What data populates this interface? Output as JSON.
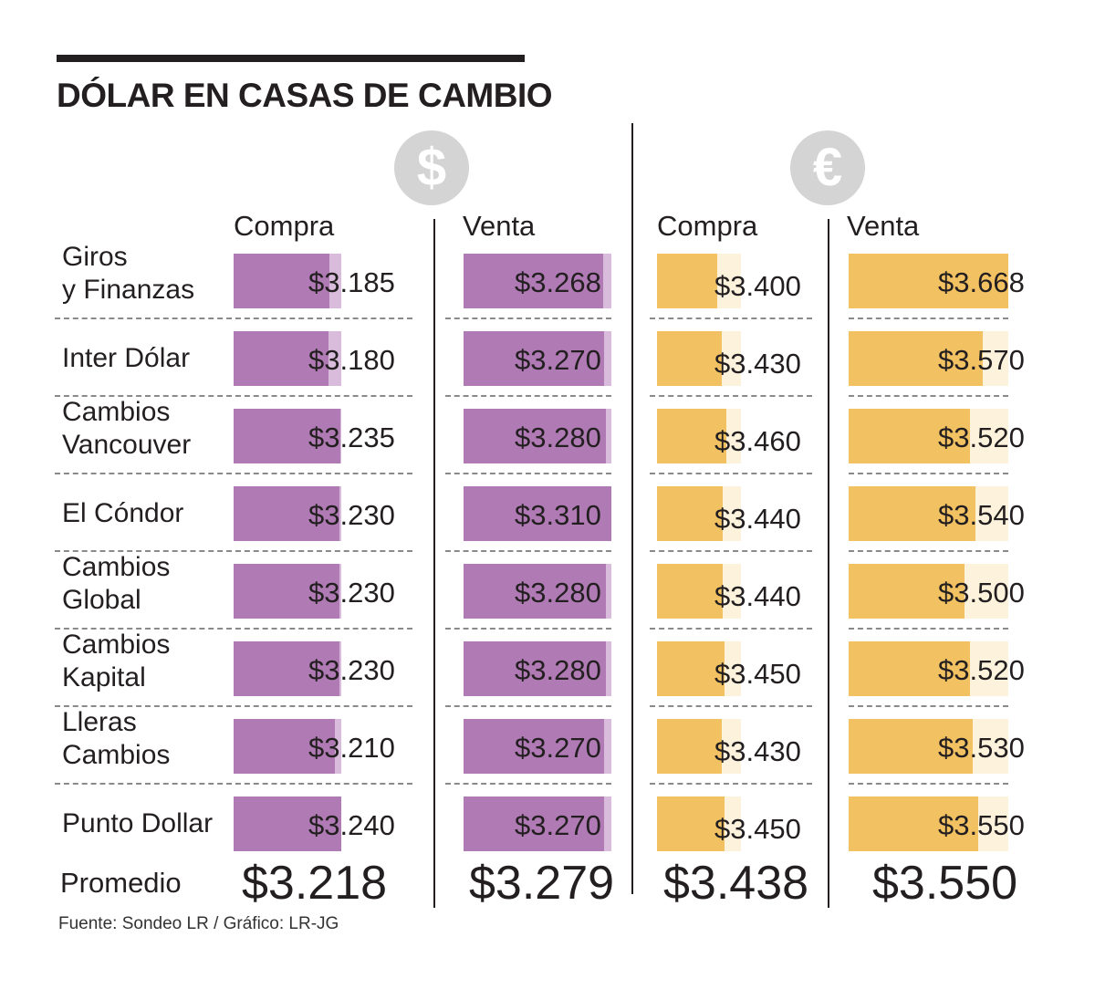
{
  "header": {
    "title": "DÓLAR EN CASAS DE CAMBIO",
    "dollar_symbol": "$",
    "euro_symbol": "€"
  },
  "colors": {
    "dollar_bar": "#b07ab5",
    "dollar_track": "#d9bcdc",
    "euro_bar": "#f2c162",
    "euro_track": "#fdf3dd",
    "divider": "#231f20",
    "separator": "#8a8a8a",
    "coin": "#d4d4d4"
  },
  "footer": {
    "average_label": "Promedio",
    "source": "Fuente: Sondeo LR / Gráfico: LR-JG"
  },
  "chart_data": {
    "type": "bar",
    "categories": [
      "Giros\ny Finanzas",
      "Inter Dólar",
      "Cambios\nVancouver",
      "El Cóndor",
      "Cambios\nGlobal",
      "Cambios\nKapital",
      "Lleras\nCambios",
      "Punto Dollar"
    ],
    "series": [
      {
        "group": "dollar",
        "name": "Compra",
        "values": [
          3185,
          3180,
          3235,
          3230,
          3230,
          3230,
          3210,
          3240
        ],
        "labels": [
          "$3.185",
          "$3.180",
          "$3.235",
          "$3.230",
          "$3.230",
          "$3.230",
          "$3.210",
          "$3.240"
        ],
        "average": "$3.218"
      },
      {
        "group": "dollar",
        "name": "Venta",
        "values": [
          3268,
          3270,
          3280,
          3310,
          3280,
          3280,
          3270,
          3270
        ],
        "labels": [
          "$3.268",
          "$3.270",
          "$3.280",
          "$3.310",
          "$3.280",
          "$3.280",
          "$3.270",
          "$3.270"
        ],
        "average": "$3.279"
      },
      {
        "group": "euro",
        "name": "Compra",
        "values": [
          3400,
          3430,
          3460,
          3440,
          3440,
          3450,
          3430,
          3450
        ],
        "labels": [
          "$3.400",
          "$3.430",
          "$3.460",
          "$3.440",
          "$3.440",
          "$3.450",
          "$3.430",
          "$3.450"
        ],
        "average": "$3.438"
      },
      {
        "group": "euro",
        "name": "Venta",
        "values": [
          3668,
          3570,
          3520,
          3540,
          3500,
          3520,
          3530,
          3550
        ],
        "labels": [
          "$3.668",
          "$3.570",
          "$3.520",
          "$3.540",
          "$3.500",
          "$3.520",
          "$3.530",
          "$3.550"
        ],
        "average": "$3.550"
      }
    ]
  }
}
